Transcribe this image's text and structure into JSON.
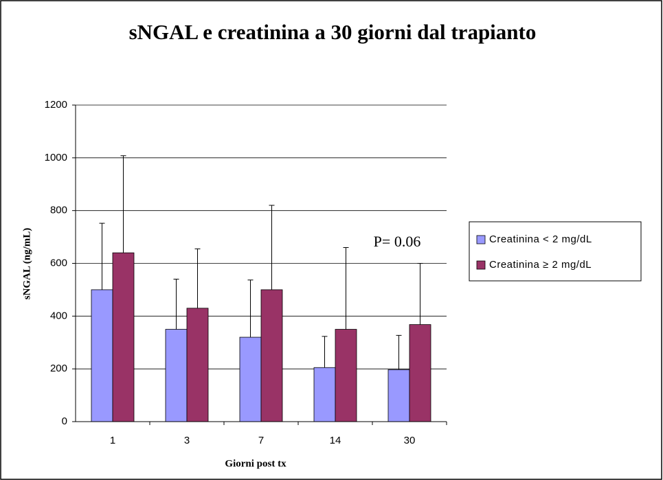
{
  "chart_data": {
    "type": "bar",
    "title": "sNGAL e creatinina a 30 giorni dal trapianto",
    "xlabel": "Giorni post tx",
    "ylabel": "sNGAL (ng/mL)",
    "annotation": "P= 0.06",
    "categories": [
      "1",
      "3",
      "7",
      "14",
      "30"
    ],
    "series": [
      {
        "name": "Creatinina < 2 mg/dL",
        "color": "#9999ff",
        "values": [
          500,
          350,
          320,
          205,
          197
        ],
        "errors": [
          252,
          190,
          217,
          118,
          130
        ]
      },
      {
        "name": "Creatinina ≥ 2 mg/dL",
        "color": "#993366",
        "values": [
          640,
          430,
          500,
          350,
          368
        ],
        "errors": [
          368,
          225,
          320,
          310,
          232
        ]
      }
    ],
    "ylim": [
      0,
      1200
    ],
    "yticks": [
      0,
      200,
      400,
      600,
      800,
      1000,
      1200
    ],
    "grid": true,
    "legend": "right"
  }
}
